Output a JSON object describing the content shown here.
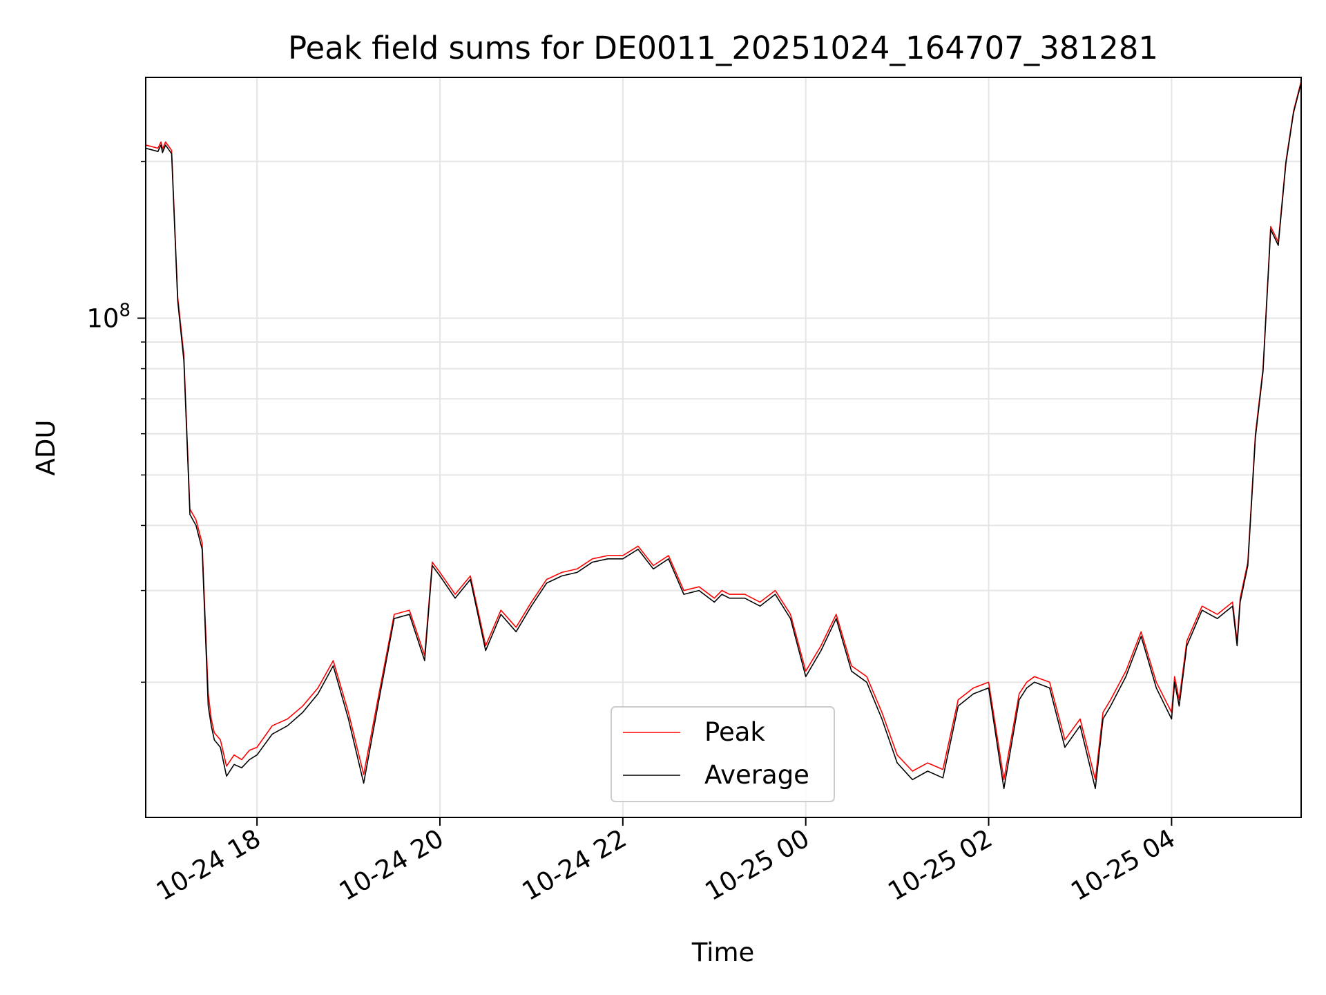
{
  "chart_data": {
    "type": "line",
    "title": "Peak field sums for DE0011_20251024_164707_381281",
    "xlabel": "Time",
    "ylabel": "ADU",
    "y_scale": "log",
    "ylim": [
      11000000,
      290000000
    ],
    "xlim": [
      "2025-10-24 16:47",
      "2025-10-25 05:25"
    ],
    "grid": true,
    "legend_position": "lower-center",
    "x_ticks": [
      {
        "label": "10-24 18",
        "value": "2025-10-24 18:00"
      },
      {
        "label": "10-24 20",
        "value": "2025-10-24 20:00"
      },
      {
        "label": "10-24 22",
        "value": "2025-10-24 22:00"
      },
      {
        "label": "10-25 00",
        "value": "2025-10-25 00:00"
      },
      {
        "label": "10-25 02",
        "value": "2025-10-25 02:00"
      },
      {
        "label": "10-25 04",
        "value": "2025-10-25 04:00"
      }
    ],
    "y_ticks": [
      {
        "label_base": "10",
        "label_exp": "8",
        "value": 100000000
      }
    ],
    "y_minor_ticks": [
      20000000,
      30000000,
      40000000,
      50000000,
      60000000,
      70000000,
      80000000,
      90000000,
      200000000
    ],
    "series": [
      {
        "name": "Peak",
        "color": "#ff0000",
        "x": [
          "2025-10-24 16:47",
          "2025-10-24 16:55",
          "2025-10-24 16:57",
          "2025-10-24 16:58",
          "2025-10-24 17:00",
          "2025-10-24 17:04",
          "2025-10-24 17:08",
          "2025-10-24 17:12",
          "2025-10-24 17:16",
          "2025-10-24 17:20",
          "2025-10-24 17:24",
          "2025-10-24 17:28",
          "2025-10-24 17:30",
          "2025-10-24 17:32",
          "2025-10-24 17:36",
          "2025-10-24 17:40",
          "2025-10-24 17:45",
          "2025-10-24 17:50",
          "2025-10-24 17:55",
          "2025-10-24 18:00",
          "2025-10-24 18:10",
          "2025-10-24 18:20",
          "2025-10-24 18:30",
          "2025-10-24 18:40",
          "2025-10-24 18:50",
          "2025-10-24 19:00",
          "2025-10-24 19:10",
          "2025-10-24 19:20",
          "2025-10-24 19:30",
          "2025-10-24 19:40",
          "2025-10-24 19:50",
          "2025-10-24 19:55",
          "2025-10-24 20:00",
          "2025-10-24 20:10",
          "2025-10-24 20:20",
          "2025-10-24 20:30",
          "2025-10-24 20:40",
          "2025-10-24 20:50",
          "2025-10-24 21:00",
          "2025-10-24 21:10",
          "2025-10-24 21:20",
          "2025-10-24 21:30",
          "2025-10-24 21:40",
          "2025-10-24 21:50",
          "2025-10-24 22:00",
          "2025-10-24 22:10",
          "2025-10-24 22:20",
          "2025-10-24 22:30",
          "2025-10-24 22:40",
          "2025-10-24 22:50",
          "2025-10-24 23:00",
          "2025-10-24 23:05",
          "2025-10-24 23:10",
          "2025-10-24 23:20",
          "2025-10-24 23:30",
          "2025-10-24 23:40",
          "2025-10-24 23:50",
          "2025-10-25 00:00",
          "2025-10-25 00:10",
          "2025-10-25 00:20",
          "2025-10-25 00:30",
          "2025-10-25 00:40",
          "2025-10-25 00:50",
          "2025-10-25 01:00",
          "2025-10-25 01:10",
          "2025-10-25 01:20",
          "2025-10-25 01:30",
          "2025-10-25 01:40",
          "2025-10-25 01:50",
          "2025-10-25 02:00",
          "2025-10-25 02:10",
          "2025-10-25 02:20",
          "2025-10-25 02:25",
          "2025-10-25 02:30",
          "2025-10-25 02:40",
          "2025-10-25 02:50",
          "2025-10-25 03:00",
          "2025-10-25 03:10",
          "2025-10-25 03:15",
          "2025-10-25 03:20",
          "2025-10-25 03:30",
          "2025-10-25 03:40",
          "2025-10-25 03:50",
          "2025-10-25 04:00",
          "2025-10-25 04:02",
          "2025-10-25 04:05",
          "2025-10-25 04:10",
          "2025-10-25 04:20",
          "2025-10-25 04:30",
          "2025-10-25 04:40",
          "2025-10-25 04:43",
          "2025-10-25 04:45",
          "2025-10-25 04:50",
          "2025-10-25 04:55",
          "2025-10-25 05:00",
          "2025-10-25 05:05",
          "2025-10-25 05:10",
          "2025-10-25 05:15",
          "2025-10-25 05:20",
          "2025-10-25 05:25"
        ],
        "values": [
          215000000,
          212000000,
          218000000,
          211000000,
          218000000,
          210000000,
          110000000,
          85000000,
          43000000,
          41000000,
          37000000,
          19000000,
          17000000,
          16000000,
          15500000,
          13800000,
          14500000,
          14200000,
          14800000,
          15000000,
          16500000,
          17000000,
          18000000,
          19500000,
          22000000,
          17500000,
          13300000,
          19000000,
          27000000,
          27500000,
          22500000,
          34000000,
          32500000,
          29500000,
          32000000,
          23500000,
          27500000,
          25500000,
          28500000,
          31500000,
          32500000,
          33000000,
          34500000,
          35000000,
          35000000,
          36500000,
          33500000,
          35000000,
          30000000,
          30500000,
          29000000,
          30000000,
          29500000,
          29500000,
          28500000,
          30000000,
          27000000,
          21000000,
          23500000,
          27000000,
          21500000,
          20500000,
          17500000,
          14500000,
          13500000,
          14000000,
          13600000,
          18500000,
          19500000,
          20000000,
          13000000,
          19000000,
          20000000,
          20500000,
          20000000,
          15500000,
          17000000,
          13000000,
          17500000,
          18500000,
          21000000,
          25000000,
          20000000,
          17500000,
          20500000,
          18500000,
          24000000,
          28000000,
          27000000,
          28500000,
          24000000,
          29000000,
          34000000,
          60000000,
          80000000,
          150000000,
          140000000,
          200000000,
          250000000,
          285000000
        ]
      },
      {
        "name": "Average",
        "color": "#000000",
        "x": [
          "2025-10-24 16:47",
          "2025-10-24 16:55",
          "2025-10-24 16:57",
          "2025-10-24 16:58",
          "2025-10-24 17:00",
          "2025-10-24 17:04",
          "2025-10-24 17:08",
          "2025-10-24 17:12",
          "2025-10-24 17:16",
          "2025-10-24 17:20",
          "2025-10-24 17:24",
          "2025-10-24 17:28",
          "2025-10-24 17:30",
          "2025-10-24 17:32",
          "2025-10-24 17:36",
          "2025-10-24 17:40",
          "2025-10-24 17:45",
          "2025-10-24 17:50",
          "2025-10-24 17:55",
          "2025-10-24 18:00",
          "2025-10-24 18:10",
          "2025-10-24 18:20",
          "2025-10-24 18:30",
          "2025-10-24 18:40",
          "2025-10-24 18:50",
          "2025-10-24 19:00",
          "2025-10-24 19:10",
          "2025-10-24 19:20",
          "2025-10-24 19:30",
          "2025-10-24 19:40",
          "2025-10-24 19:50",
          "2025-10-24 19:55",
          "2025-10-24 20:00",
          "2025-10-24 20:10",
          "2025-10-24 20:20",
          "2025-10-24 20:30",
          "2025-10-24 20:40",
          "2025-10-24 20:50",
          "2025-10-24 21:00",
          "2025-10-24 21:10",
          "2025-10-24 21:20",
          "2025-10-24 21:30",
          "2025-10-24 21:40",
          "2025-10-24 21:50",
          "2025-10-24 22:00",
          "2025-10-24 22:10",
          "2025-10-24 22:20",
          "2025-10-24 22:30",
          "2025-10-24 22:40",
          "2025-10-24 22:50",
          "2025-10-24 23:00",
          "2025-10-24 23:05",
          "2025-10-24 23:10",
          "2025-10-24 23:20",
          "2025-10-24 23:30",
          "2025-10-24 23:40",
          "2025-10-24 23:50",
          "2025-10-25 00:00",
          "2025-10-25 00:10",
          "2025-10-25 00:20",
          "2025-10-25 00:30",
          "2025-10-25 00:40",
          "2025-10-25 00:50",
          "2025-10-25 01:00",
          "2025-10-25 01:10",
          "2025-10-25 01:20",
          "2025-10-25 01:30",
          "2025-10-25 01:40",
          "2025-10-25 01:50",
          "2025-10-25 02:00",
          "2025-10-25 02:10",
          "2025-10-25 02:20",
          "2025-10-25 02:25",
          "2025-10-25 02:30",
          "2025-10-25 02:40",
          "2025-10-25 02:50",
          "2025-10-25 03:00",
          "2025-10-25 03:10",
          "2025-10-25 03:15",
          "2025-10-25 03:20",
          "2025-10-25 03:30",
          "2025-10-25 03:40",
          "2025-10-25 03:50",
          "2025-10-25 04:00",
          "2025-10-25 04:02",
          "2025-10-25 04:05",
          "2025-10-25 04:10",
          "2025-10-25 04:20",
          "2025-10-25 04:30",
          "2025-10-25 04:40",
          "2025-10-25 04:43",
          "2025-10-25 04:45",
          "2025-10-25 04:50",
          "2025-10-25 04:55",
          "2025-10-25 05:00",
          "2025-10-25 05:05",
          "2025-10-25 05:10",
          "2025-10-25 05:15",
          "2025-10-25 05:20",
          "2025-10-25 05:25"
        ],
        "values": [
          212000000,
          209000000,
          215000000,
          208000000,
          215000000,
          207000000,
          108000000,
          83000000,
          42000000,
          40000000,
          36000000,
          18000000,
          16500000,
          15500000,
          15000000,
          13200000,
          13900000,
          13700000,
          14200000,
          14500000,
          15900000,
          16500000,
          17500000,
          19000000,
          21500000,
          17000000,
          12800000,
          18500000,
          26500000,
          27000000,
          22000000,
          33500000,
          32000000,
          29000000,
          31500000,
          23000000,
          27000000,
          25000000,
          28000000,
          31000000,
          32000000,
          32500000,
          34000000,
          34500000,
          34500000,
          36000000,
          33000000,
          34500000,
          29500000,
          30000000,
          28500000,
          29500000,
          29000000,
          29000000,
          28000000,
          29500000,
          26500000,
          20500000,
          23000000,
          26500000,
          21000000,
          20000000,
          17000000,
          14000000,
          13000000,
          13500000,
          13100000,
          18000000,
          19000000,
          19500000,
          12500000,
          18500000,
          19500000,
          20000000,
          19500000,
          15000000,
          16500000,
          12500000,
          17000000,
          18000000,
          20500000,
          24500000,
          19500000,
          17000000,
          20000000,
          18000000,
          23500000,
          27500000,
          26500000,
          28000000,
          23500000,
          28500000,
          33500000,
          59000000,
          79000000,
          148000000,
          138000000,
          198000000,
          248000000,
          283000000
        ]
      }
    ]
  }
}
